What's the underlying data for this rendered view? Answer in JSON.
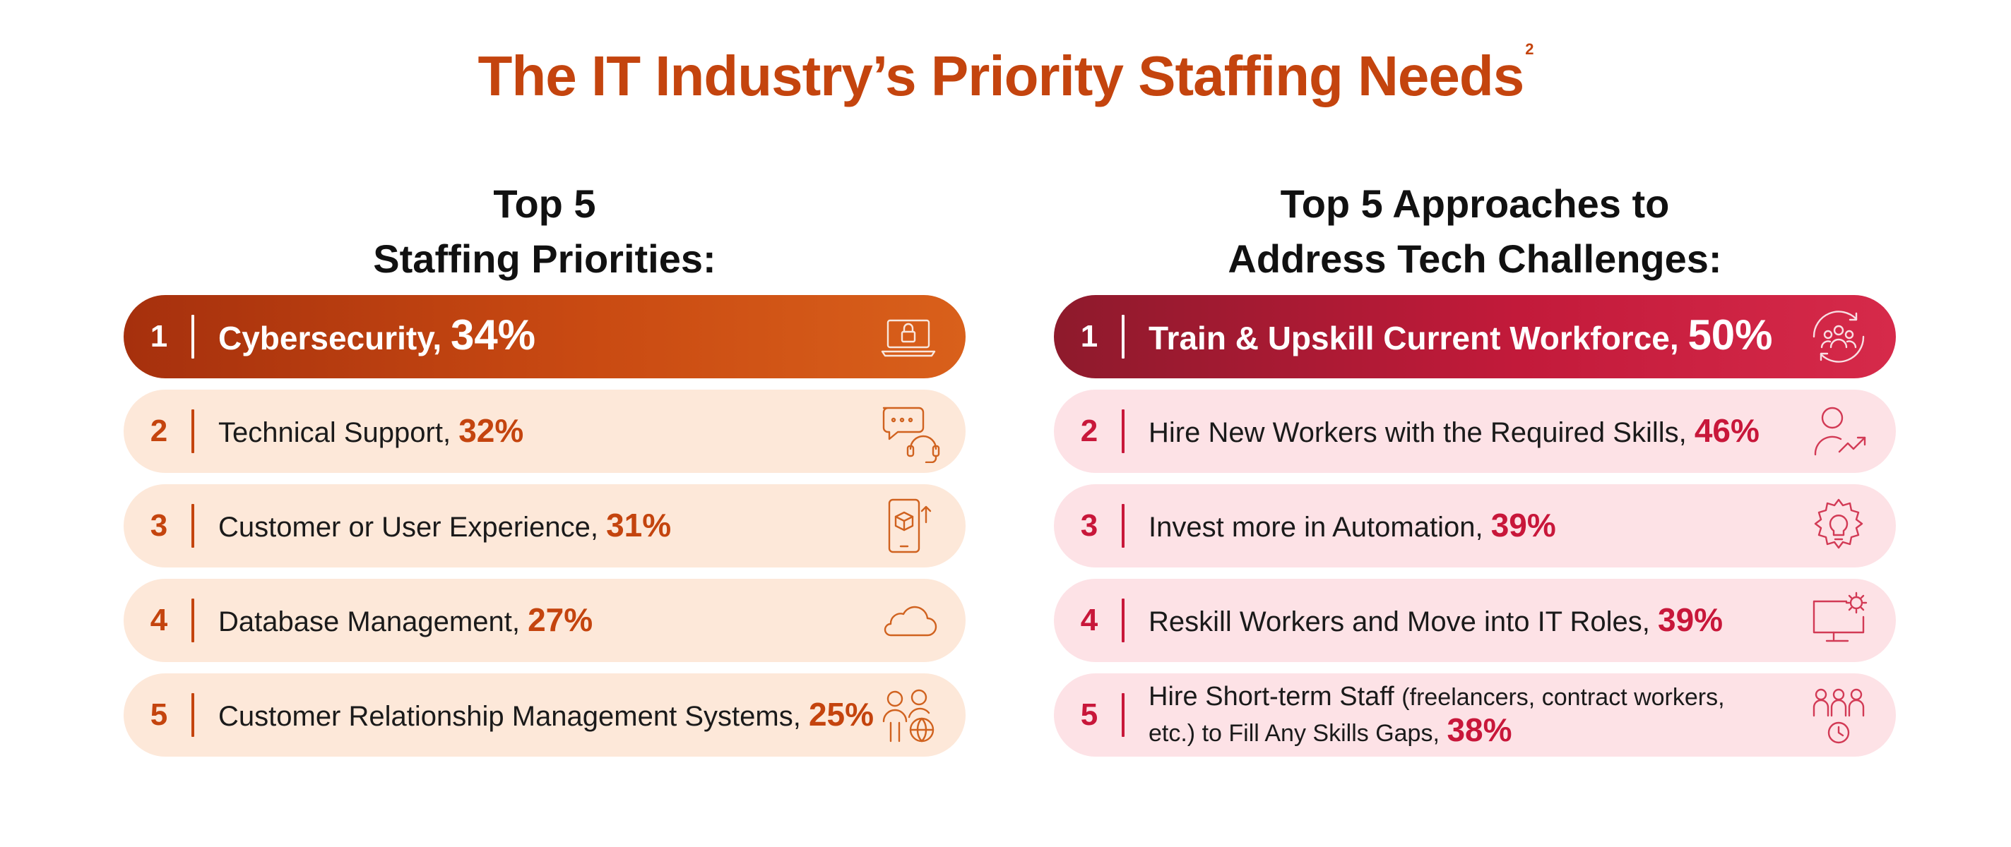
{
  "title": "The IT Industry’s Priority Staffing Needs",
  "title_footnote": "2",
  "colors": {
    "title": "#c4440e",
    "left_accent": "#c4440e",
    "right_accent": "#c8173a"
  },
  "chart_data": [
    {
      "type": "table",
      "title_line1": "Top 5",
      "title_line2": "Staffing Priorities:",
      "rows": [
        {
          "rank": "1",
          "label": "Cybersecurity,",
          "value": 34,
          "value_text": "34%",
          "icon": "laptop-lock-icon"
        },
        {
          "rank": "2",
          "label": "Technical Support,",
          "value": 32,
          "value_text": "32%",
          "icon": "chat-headset-icon"
        },
        {
          "rank": "3",
          "label": "Customer or User Experience,",
          "value": 31,
          "value_text": "31%",
          "icon": "phone-cube-icon"
        },
        {
          "rank": "4",
          "label": "Database Management,",
          "value": 27,
          "value_text": "27%",
          "icon": "cloud-icon"
        },
        {
          "rank": "5",
          "label": "Customer Relationship Management Systems,",
          "value": 25,
          "value_text": "25%",
          "icon": "users-globe-icon"
        }
      ]
    },
    {
      "type": "table",
      "title_line1": "Top 5 Approaches to",
      "title_line2": "Address Tech Challenges:",
      "rows": [
        {
          "rank": "1",
          "label": "Train & Upskill Current Workforce,",
          "value": 50,
          "value_text": "50%",
          "icon": "team-cycle-icon"
        },
        {
          "rank": "2",
          "label": "Hire New Workers with the Required Skills,",
          "value": 46,
          "value_text": "46%",
          "icon": "person-growth-icon"
        },
        {
          "rank": "3",
          "label": "Invest more in Automation,",
          "value": 39,
          "value_text": "39%",
          "icon": "gear-bulb-icon"
        },
        {
          "rank": "4",
          "label": "Reskill Workers and Move into IT Roles,",
          "value": 39,
          "value_text": "39%",
          "icon": "monitor-gear-icon"
        },
        {
          "rank": "5",
          "label": "Hire Short-term Staff",
          "label_small": "(freelancers, contract workers,",
          "label_line2": "etc.) to Fill Any Skills Gaps,",
          "value": 38,
          "value_text": "38%",
          "icon": "people-clock-icon"
        }
      ]
    }
  ]
}
